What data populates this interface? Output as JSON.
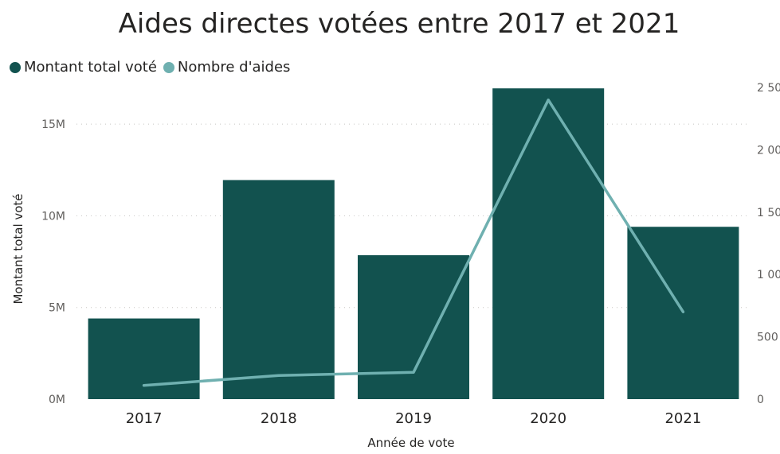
{
  "chart_data": {
    "type": "bar",
    "title": "Aides directes votées entre 2017 et 2021",
    "xlabel": "Année de vote",
    "ylabel": "Montant total voté",
    "categories": [
      "2017",
      "2018",
      "2019",
      "2020",
      "2021"
    ],
    "series": [
      {
        "name": "Montant total voté",
        "type": "bar",
        "axis": "left",
        "color": "#12524f",
        "values": [
          4400000,
          11950000,
          7850000,
          16950000,
          9400000
        ]
      },
      {
        "name": "Nombre d'aides",
        "type": "line",
        "axis": "right",
        "color": "#6fb0b0",
        "values": [
          110,
          190,
          215,
          2400,
          700
        ]
      }
    ],
    "ylim": [
      0,
      17000000
    ],
    "y2lim": [
      0,
      2500
    ],
    "yticks": [
      "0M",
      "5M",
      "10M",
      "15M"
    ],
    "y2ticks": [
      "0",
      "500",
      "1 000",
      "1 500",
      "2 000",
      "2 500"
    ],
    "grid": true,
    "legend_position": "top-left"
  }
}
